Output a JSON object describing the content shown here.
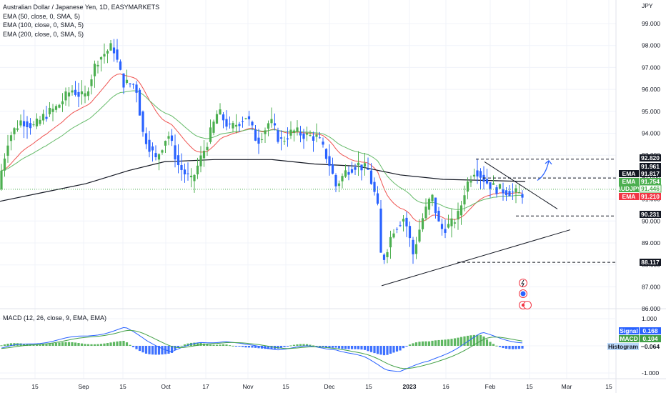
{
  "header": {
    "title": "Australian Dollar / Japanese Yen, 1D, EASYMARKETS",
    "indicators": [
      "EMA (50, close, 0, SMA, 5)",
      "EMA (100, close, 0, SMA, 5)",
      "EMA (200, close, 0, SMA, 5)"
    ],
    "macd": "MACD (12, 26, close, 9, EMA, EMA)"
  },
  "colors": {
    "up": "#4caf50",
    "down": "#2962ff",
    "ema50": "#ef5350",
    "ema100": "#66bb6a",
    "ema200": "#131722",
    "macd_line": "#2962ff",
    "signal_line": "#43a047",
    "hist_pos": "#4caf50",
    "hist_neg": "#2962ff",
    "tag_dark": "#131722",
    "tag_green": "#4caf50",
    "tag_red": "#f23645"
  },
  "price_axis": {
    "currency": "JPY",
    "ticks": [
      "99.000",
      "98.000",
      "97.000",
      "96.000",
      "95.000",
      "94.000",
      "93.000",
      "92.000",
      "91.000",
      "90.000",
      "89.000",
      "88.000",
      "87.000",
      "86.000"
    ],
    "range": [
      85.7,
      99.6
    ]
  },
  "macd_axis": {
    "ticks": [
      "1.000",
      "0.000",
      "-1.000"
    ],
    "range": [
      -1.25,
      1.1
    ]
  },
  "time_axis": {
    "ticks": [
      "15",
      "Sep",
      "15",
      "Oct",
      "17",
      "Nov",
      "15",
      "Dec",
      "15",
      "2023",
      "16",
      "Feb",
      "15",
      "Mar",
      "15"
    ],
    "bold": "2023"
  },
  "price_tags": [
    {
      "label": "",
      "value": "92.820",
      "style": "dark"
    },
    {
      "label": "",
      "value": "91.961",
      "style": "dark"
    },
    {
      "label": "EMA",
      "value": "91.817",
      "style": "dark"
    },
    {
      "label": "EMA",
      "value": "91.754",
      "style": "green"
    },
    {
      "label": "AUDJPY",
      "value": "91.446",
      "style": "green_outline"
    },
    {
      "label": "EMA",
      "value": "91.210",
      "style": "red"
    },
    {
      "label": "",
      "value": "90.231",
      "style": "dark"
    },
    {
      "label": "",
      "value": "88.117",
      "style": "dark"
    }
  ],
  "macd_tags": [
    {
      "label": "Signal",
      "value": "0.168",
      "style": "blue"
    },
    {
      "label": "MACD",
      "value": "0.104",
      "style": "green"
    },
    {
      "label": "Histogram",
      "value": "−0.064",
      "style": "light"
    }
  ],
  "levels": [
    92.82,
    91.961,
    90.231,
    88.117
  ],
  "events": [
    "lightning-icon",
    "flag-au-icon",
    "flag-jp-icon"
  ],
  "chart_data": {
    "type": "candlestick",
    "symbol": "AUDJPY",
    "timeframe": "1D",
    "last_close": 91.446,
    "series": [
      {
        "name": "EMA (50, close, 0, SMA, 5)",
        "last": 91.21
      },
      {
        "name": "EMA (100, close, 0, SMA, 5)",
        "last": 91.754
      },
      {
        "name": "EMA (200, close, 0, SMA, 5)",
        "last": 91.817
      }
    ],
    "macd": {
      "signal": 0.168,
      "macd": 0.104,
      "histogram": -0.064
    },
    "ylim": [
      85.7,
      99.6
    ],
    "grid": true
  }
}
